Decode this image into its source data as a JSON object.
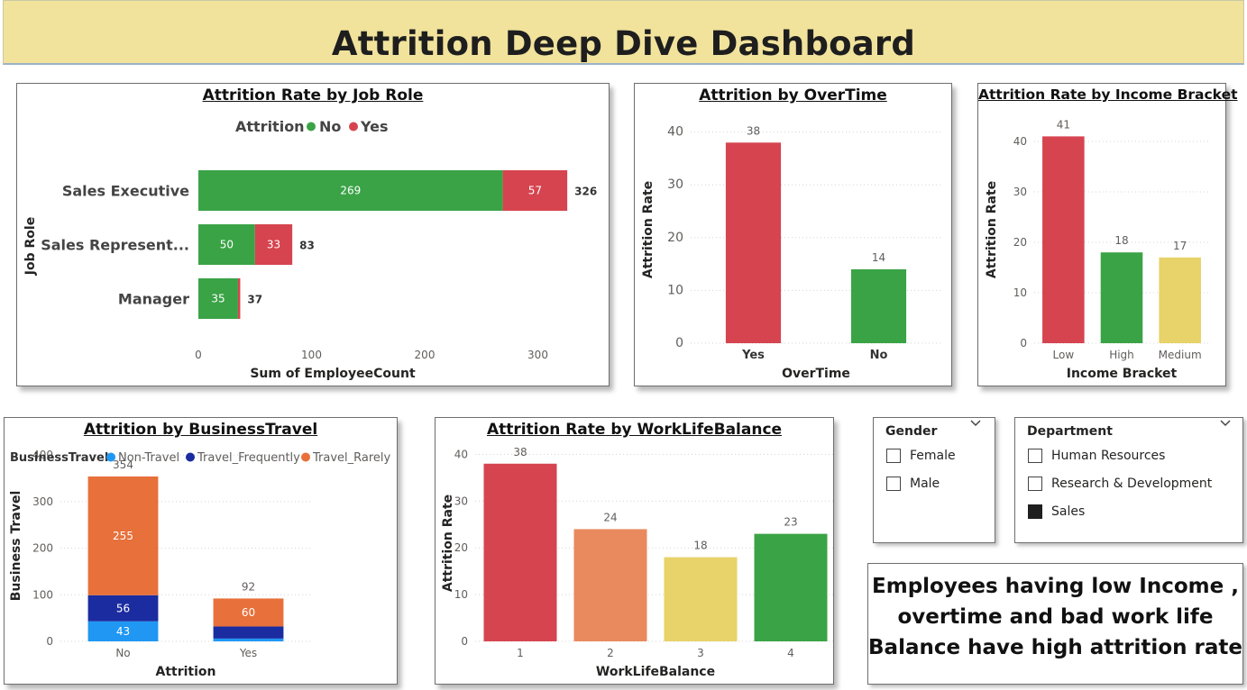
{
  "header": {
    "title": "Attrition Deep Dive Dashboard"
  },
  "colors": {
    "green": "#3aa346",
    "red": "#d6444f",
    "salmon": "#e98a5e",
    "yellow": "#e8d26a",
    "light_blue": "#1f97f3",
    "navy": "#1b2ca0",
    "orange": "#e8703a",
    "header_bg": "#f1e29c"
  },
  "charts": {
    "job_role": {
      "title": "Attrition Rate by Job Role"
    },
    "overtime": {
      "title": "Attrition by OverTime"
    },
    "income": {
      "title": "Attrition Rate by Income Bracket"
    },
    "travel": {
      "title": "Attrition by BusinessTravel"
    },
    "wlb": {
      "title": "Attrition Rate by WorkLifeBalance"
    }
  },
  "chart_data": [
    {
      "id": "job_role",
      "type": "bar",
      "orientation": "horizontal",
      "stacked": true,
      "title": "Attrition Rate by Job Role",
      "xlabel": "Sum of EmployeeCount",
      "ylabel": "Job Role",
      "legend_title": "Attrition",
      "legend_position": "top",
      "categories": [
        "Sales Executive",
        "Sales Represent...",
        "Manager"
      ],
      "series": [
        {
          "name": "No",
          "values": [
            269,
            50,
            35
          ]
        },
        {
          "name": "Yes",
          "values": [
            57,
            33,
            2
          ]
        }
      ],
      "data_labels": [
        [
          "269",
          "57"
        ],
        [
          "50",
          "33"
        ],
        [
          "35",
          ""
        ]
      ],
      "totals": [
        326,
        83,
        37
      ],
      "xlim": [
        0,
        330
      ],
      "xticks": [
        0,
        100,
        200,
        300
      ],
      "grid": false
    },
    {
      "id": "overtime",
      "type": "bar",
      "title": "Attrition by OverTime",
      "xlabel": "OverTime",
      "ylabel": "Attrition Rate",
      "categories": [
        "Yes",
        "No"
      ],
      "values": [
        38,
        14
      ],
      "ylim": [
        0,
        43
      ],
      "yticks": [
        0,
        10,
        20,
        30,
        40
      ],
      "grid": true
    },
    {
      "id": "income",
      "type": "bar",
      "title": "Attrition Rate by Income Bracket",
      "xlabel": "Income Bracket",
      "ylabel": "Attrition Rate",
      "categories": [
        "Low",
        "High",
        "Medium"
      ],
      "values": [
        41,
        18,
        17
      ],
      "ylim": [
        0,
        45
      ],
      "yticks": [
        0,
        10,
        20,
        30,
        40
      ],
      "grid": true
    },
    {
      "id": "travel",
      "type": "bar",
      "stacked": true,
      "title": "Attrition by BusinessTravel",
      "xlabel": "Attrition",
      "ylabel": "Business Travel",
      "legend_title": "BusinessTravel",
      "legend_position": "top",
      "categories": [
        "No",
        "Yes"
      ],
      "series": [
        {
          "name": "Non-Travel",
          "values": [
            43,
            6
          ]
        },
        {
          "name": "Travel_Frequently",
          "values": [
            56,
            26
          ]
        },
        {
          "name": "Travel_Rarely",
          "values": [
            255,
            60
          ]
        }
      ],
      "data_labels": [
        [
          "43",
          "56",
          "255"
        ],
        [
          "",
          "",
          "60"
        ]
      ],
      "totals": [
        354,
        92
      ],
      "ylim": [
        0,
        410
      ],
      "yticks": [
        0,
        100,
        200,
        300,
        400
      ],
      "grid": true
    },
    {
      "id": "wlb",
      "type": "bar",
      "title": "Attrition Rate by WorkLifeBalance",
      "xlabel": "WorkLifeBalance",
      "ylabel": "Attrition Rate",
      "categories": [
        "1",
        "2",
        "3",
        "4"
      ],
      "values": [
        38,
        24,
        18,
        23
      ],
      "ylim": [
        0,
        42
      ],
      "yticks": [
        0,
        10,
        20,
        30,
        40
      ],
      "grid": true
    }
  ],
  "slicers": {
    "gender": {
      "title": "Gender",
      "options": [
        {
          "label": "Female",
          "selected": false
        },
        {
          "label": "Male",
          "selected": false
        }
      ]
    },
    "department": {
      "title": "Department",
      "options": [
        {
          "label": "Human Resources",
          "selected": false
        },
        {
          "label": "Research & Development",
          "selected": false
        },
        {
          "label": "Sales",
          "selected": true
        }
      ]
    }
  },
  "note": {
    "lines": [
      "Employees  having low Income ,",
      "overtime and bad work life",
      "Balance have high attrition rate"
    ]
  }
}
